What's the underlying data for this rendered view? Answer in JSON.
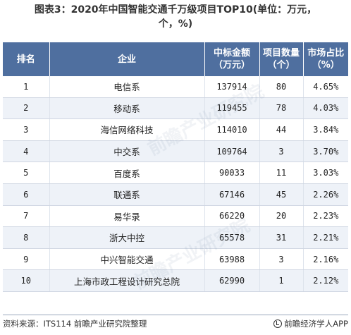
{
  "title_line1": "图表3：2020年中国智能交通千万级项目TOP10(单位：万元，",
  "title_line2": "个，%)",
  "table": {
    "headers": [
      "排名",
      "企业",
      "中标金额\n（万元）",
      "项目数量\n（个）",
      "市场占比\n（%）"
    ],
    "rows": [
      [
        "1",
        "电信系",
        "137914",
        "80",
        "4.65%"
      ],
      [
        "2",
        "移动系",
        "119455",
        "78",
        "4.03%"
      ],
      [
        "3",
        "海信网络科技",
        "114010",
        "44",
        "3.84%"
      ],
      [
        "4",
        "中交系",
        "109764",
        "3",
        "3.70%"
      ],
      [
        "5",
        "百度系",
        "90033",
        "11",
        "3.03%"
      ],
      [
        "6",
        "联通系",
        "67146",
        "45",
        "2.26%"
      ],
      [
        "7",
        "易华录",
        "66220",
        "20",
        "2.23%"
      ],
      [
        "8",
        "浙大中控",
        "65578",
        "31",
        "2.21%"
      ],
      [
        "9",
        "中兴智能交通",
        "63988",
        "3",
        "2.16%"
      ],
      [
        "10",
        "上海市政工程设计研究总院",
        "62990",
        "1",
        "2.12%"
      ]
    ]
  },
  "footer": {
    "source": "资料来源：ITS114 前瞻产业研究院整理",
    "brand": "前瞻经济学人APP"
  },
  "watermark_text": "前瞻产业研究院",
  "colors": {
    "header_bg": "#4f6f9f",
    "header_text": "#ffffff",
    "stripe": "#eef2f8"
  }
}
